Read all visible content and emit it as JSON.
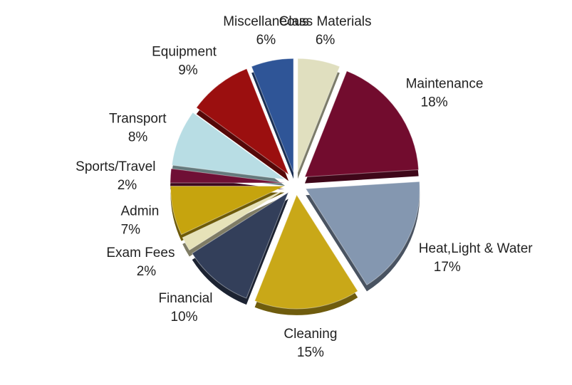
{
  "chart_data": {
    "type": "pie",
    "categories": [
      "Class Materials",
      "Maintenance",
      "Heat,Light & Water",
      "Cleaning",
      "Financial",
      "Exam Fees",
      "Admin",
      "Sports/Travel",
      "Transport",
      "Equipment",
      "Miscellaneous"
    ],
    "values": [
      6,
      18,
      17,
      15,
      10,
      2,
      7,
      2,
      8,
      9,
      6
    ],
    "value_labels": [
      "6%",
      "18%",
      "17%",
      "15%",
      "10%",
      "2%",
      "7%",
      "2%",
      "8%",
      "9%",
      "6%"
    ],
    "colors": [
      "#e0dfbf",
      "#720c2e",
      "#8497b0",
      "#c9a818",
      "#333f5a",
      "#e6e2b8",
      "#c6a40e",
      "#6f0f35",
      "#b8dde4",
      "#9b0f0f",
      "#2f5597"
    ]
  }
}
